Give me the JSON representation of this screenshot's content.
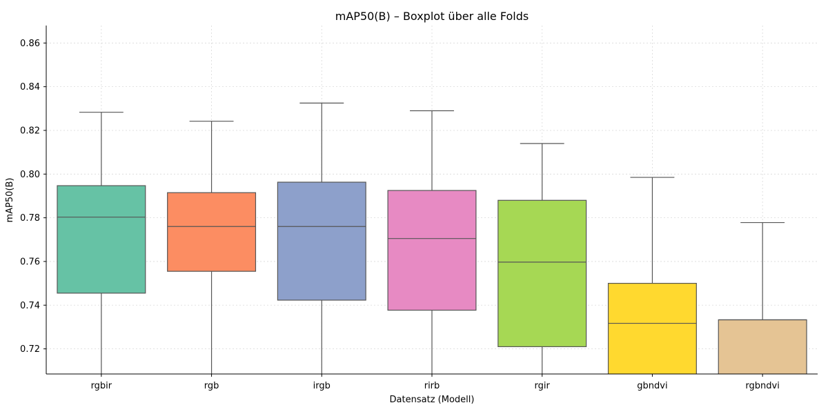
{
  "chart_data": {
    "type": "boxplot",
    "title": "mAP50(B) – Boxplot über alle Folds",
    "xlabel": "Datensatz (Modell)",
    "ylabel": "mAP50(B)",
    "ylim": [
      0.7085,
      0.868
    ],
    "yticks": [
      0.72,
      0.74,
      0.76,
      0.78,
      0.8,
      0.82,
      0.84,
      0.86
    ],
    "ytick_labels": [
      "0.72",
      "0.74",
      "0.76",
      "0.78",
      "0.80",
      "0.82",
      "0.84",
      "0.86"
    ],
    "grid": true,
    "categories": [
      "rgbir",
      "rgb",
      "irgb",
      "rirb",
      "rgir",
      "gbndvi",
      "rgbndvi"
    ],
    "boxes": [
      {
        "category": "rgbir",
        "whisker_low": 0.7,
        "q1": 0.7455,
        "median": 0.7803,
        "q3": 0.7947,
        "whisker_high": 0.8283,
        "color": "#66c2a5"
      },
      {
        "category": "rgb",
        "whisker_low": 0.7,
        "q1": 0.7555,
        "median": 0.776,
        "q3": 0.7915,
        "whisker_high": 0.8242,
        "color": "#fc8d62"
      },
      {
        "category": "irgb",
        "whisker_low": 0.7,
        "q1": 0.7423,
        "median": 0.776,
        "q3": 0.7963,
        "whisker_high": 0.8325,
        "color": "#8da0cb"
      },
      {
        "category": "rirb",
        "whisker_low": 0.7,
        "q1": 0.7377,
        "median": 0.7705,
        "q3": 0.7925,
        "whisker_high": 0.829,
        "color": "#e78ac3"
      },
      {
        "category": "rgir",
        "whisker_low": 0.7,
        "q1": 0.721,
        "median": 0.7597,
        "q3": 0.788,
        "whisker_high": 0.814,
        "color": "#a6d854"
      },
      {
        "category": "gbndvi",
        "whisker_low": 0.7,
        "q1": 0.7,
        "median": 0.7317,
        "q3": 0.75,
        "whisker_high": 0.7985,
        "color": "#ffd92f"
      },
      {
        "category": "rgbndvi",
        "whisker_low": 0.7,
        "q1": 0.7,
        "median": 0.7333,
        "q3": 0.7333,
        "whisker_high": 0.7778,
        "color": "#e5c494"
      }
    ]
  }
}
